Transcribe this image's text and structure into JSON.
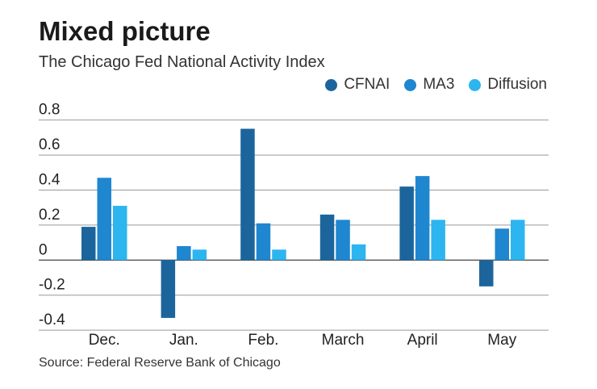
{
  "title": "Mixed picture",
  "subtitle": "The Chicago Fed National Activity Index",
  "source": "Source: Federal Reserve Bank of Chicago",
  "chart_data": {
    "type": "bar",
    "title": "Mixed picture",
    "subtitle": "The Chicago Fed National Activity Index",
    "categories": [
      "Dec.",
      "Jan.",
      "Feb.",
      "March",
      "April",
      "May"
    ],
    "series": [
      {
        "name": "CFNAI",
        "color": "#1c659c",
        "values": [
          0.19,
          -0.33,
          0.75,
          0.26,
          0.42,
          -0.15
        ]
      },
      {
        "name": "MA3",
        "color": "#1f86d0",
        "values": [
          0.47,
          0.08,
          0.21,
          0.23,
          0.48,
          0.18
        ]
      },
      {
        "name": "Diffusion",
        "color": "#2db5ef",
        "values": [
          0.31,
          0.06,
          0.06,
          0.09,
          0.23,
          0.23
        ]
      }
    ],
    "ylim": [
      -0.4,
      0.8
    ],
    "yticks": [
      0.8,
      0.6,
      0.4,
      0.2,
      0,
      -0.2,
      -0.4
    ],
    "ytick_labels": [
      "0.8",
      "0.6",
      "0.4",
      "0.2",
      "0",
      "-0.2",
      "-0.4"
    ],
    "grid": true,
    "legend_position": "top-right"
  }
}
